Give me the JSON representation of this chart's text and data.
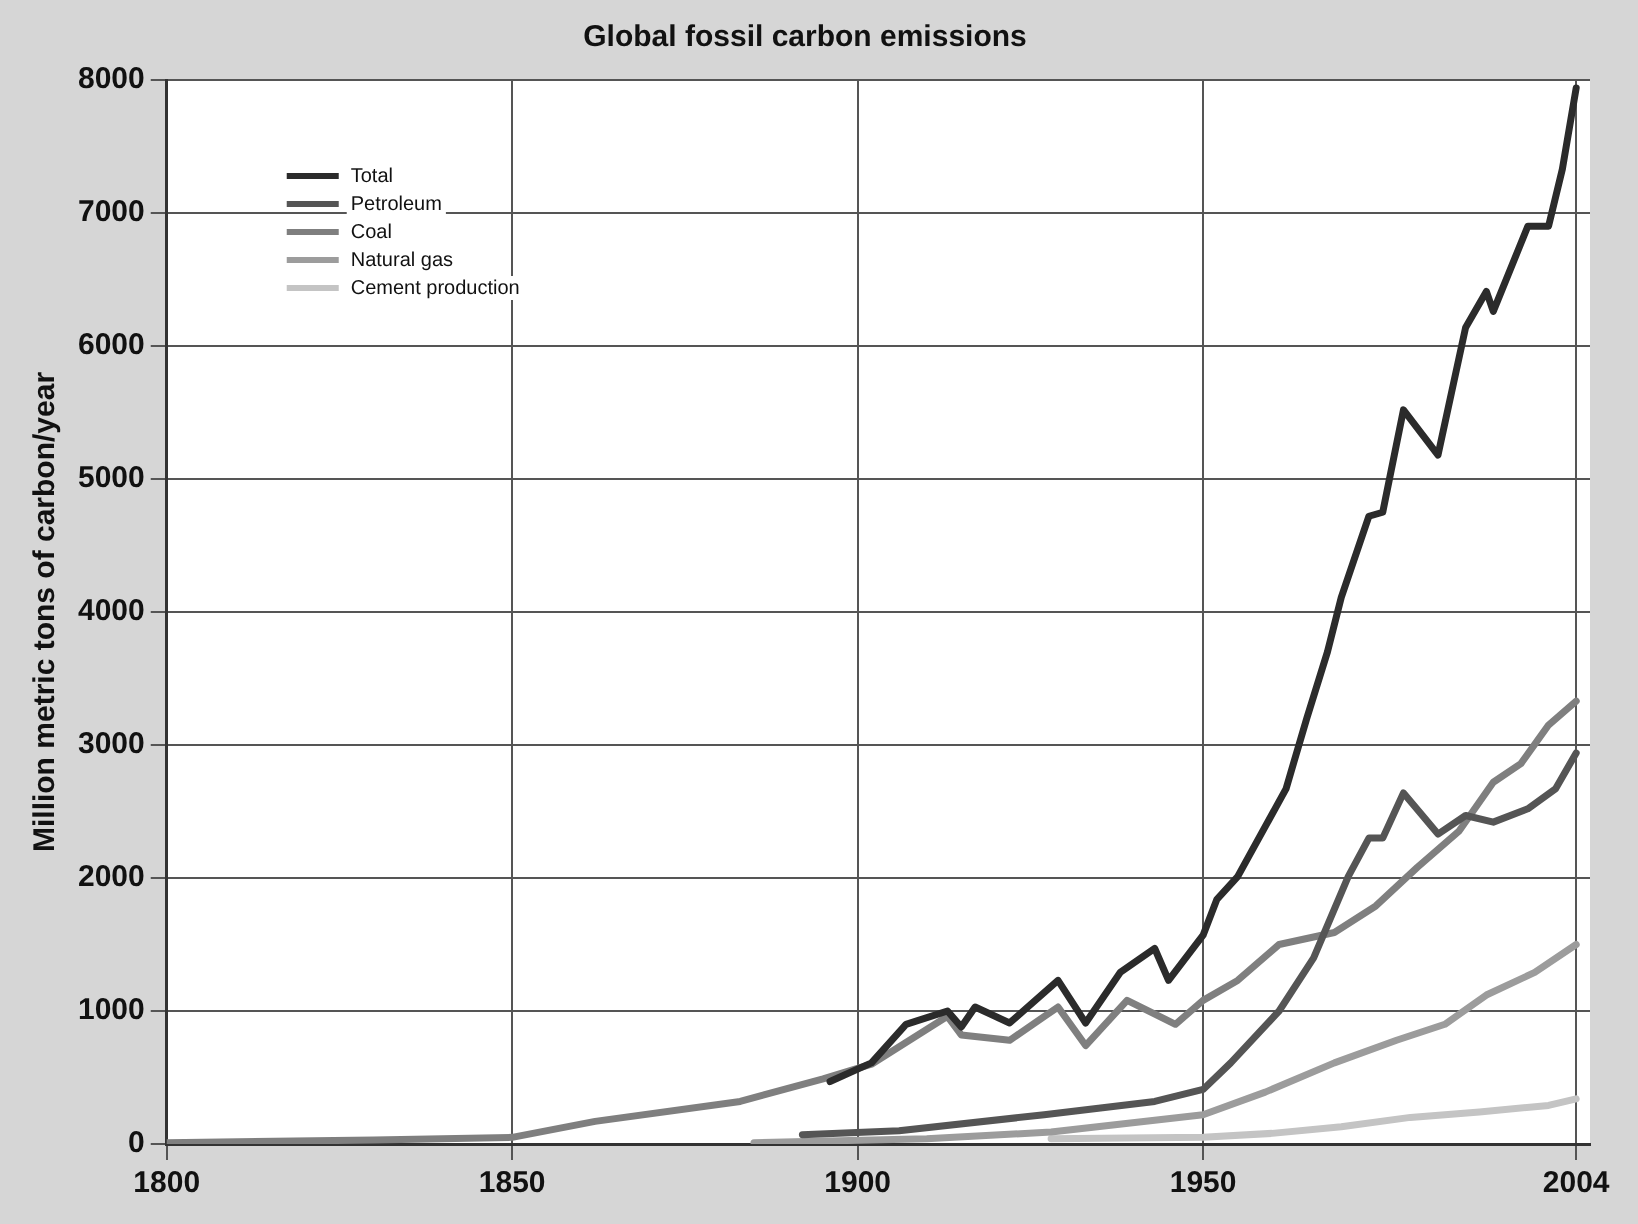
{
  "chart_data": {
    "type": "line",
    "title": "Global fossil carbon emissions",
    "ylabel": "Million metric tons of carbon/year",
    "xlim": [
      1800,
      2006
    ],
    "xticks": [
      1800,
      1850,
      1900,
      1950,
      2004
    ],
    "ylim": [
      0,
      8000
    ],
    "yticks": [
      0,
      1000,
      2000,
      3000,
      4000,
      5000,
      6000,
      7000,
      8000
    ],
    "grid": true,
    "legend": "top left",
    "marker": "none",
    "line_style": "solid",
    "series": [
      {
        "name": "Total",
        "color": "#2b2b2b",
        "x": [
          1896,
          1902,
          1907,
          1913,
          1915,
          1917,
          1922,
          1929,
          1933,
          1938,
          1943,
          1945,
          1950,
          1952,
          1955,
          1962,
          1965,
          1968,
          1970,
          1974,
          1976,
          1979,
          1984,
          1988,
          1991,
          1992,
          1997,
          2000,
          2002,
          2004
        ],
        "values": [
          470,
          610,
          900,
          1000,
          880,
          1030,
          910,
          1230,
          910,
          1290,
          1470,
          1230,
          1570,
          1840,
          2010,
          2670,
          3200,
          3700,
          4110,
          4720,
          4750,
          5520,
          5180,
          6140,
          6410,
          6260,
          6900,
          6900,
          7330,
          7940
        ]
      },
      {
        "name": "Petroleum",
        "color": "#555555",
        "x": [
          1892,
          1906,
          1927,
          1943,
          1950,
          1954,
          1961,
          1966,
          1971,
          1974,
          1976,
          1979,
          1984,
          1988,
          1992,
          1997,
          2001,
          2004
        ],
        "values": [
          70,
          100,
          220,
          320,
          410,
          610,
          1000,
          1400,
          2010,
          2300,
          2300,
          2640,
          2330,
          2470,
          2420,
          2520,
          2670,
          2940
        ]
      },
      {
        "name": "Coal",
        "color": "#7f7f7f",
        "x": [
          1800,
          1830,
          1850,
          1862,
          1883,
          1895,
          1902,
          1913,
          1915,
          1922,
          1929,
          1933,
          1939,
          1946,
          1950,
          1955,
          1961,
          1969,
          1975,
          1981,
          1987,
          1992,
          1996,
          2000,
          2004
        ],
        "values": [
          10,
          30,
          50,
          170,
          320,
          490,
          600,
          960,
          820,
          780,
          1030,
          740,
          1080,
          900,
          1080,
          1230,
          1500,
          1590,
          1790,
          2080,
          2350,
          2720,
          2860,
          3150,
          3330
        ]
      },
      {
        "name": "Natural gas",
        "color": "#9c9c9c",
        "x": [
          1885,
          1910,
          1928,
          1950,
          1959,
          1969,
          1978,
          1985,
          1991,
          1998,
          2004
        ],
        "values": [
          10,
          40,
          90,
          220,
          390,
          610,
          780,
          900,
          1120,
          1290,
          1500
        ]
      },
      {
        "name": "Cement production",
        "color": "#c4c4c4",
        "x": [
          1928,
          1950,
          1960,
          1970,
          1980,
          1990,
          2000,
          2004
        ],
        "values": [
          40,
          50,
          80,
          130,
          200,
          240,
          290,
          340
        ]
      }
    ]
  }
}
